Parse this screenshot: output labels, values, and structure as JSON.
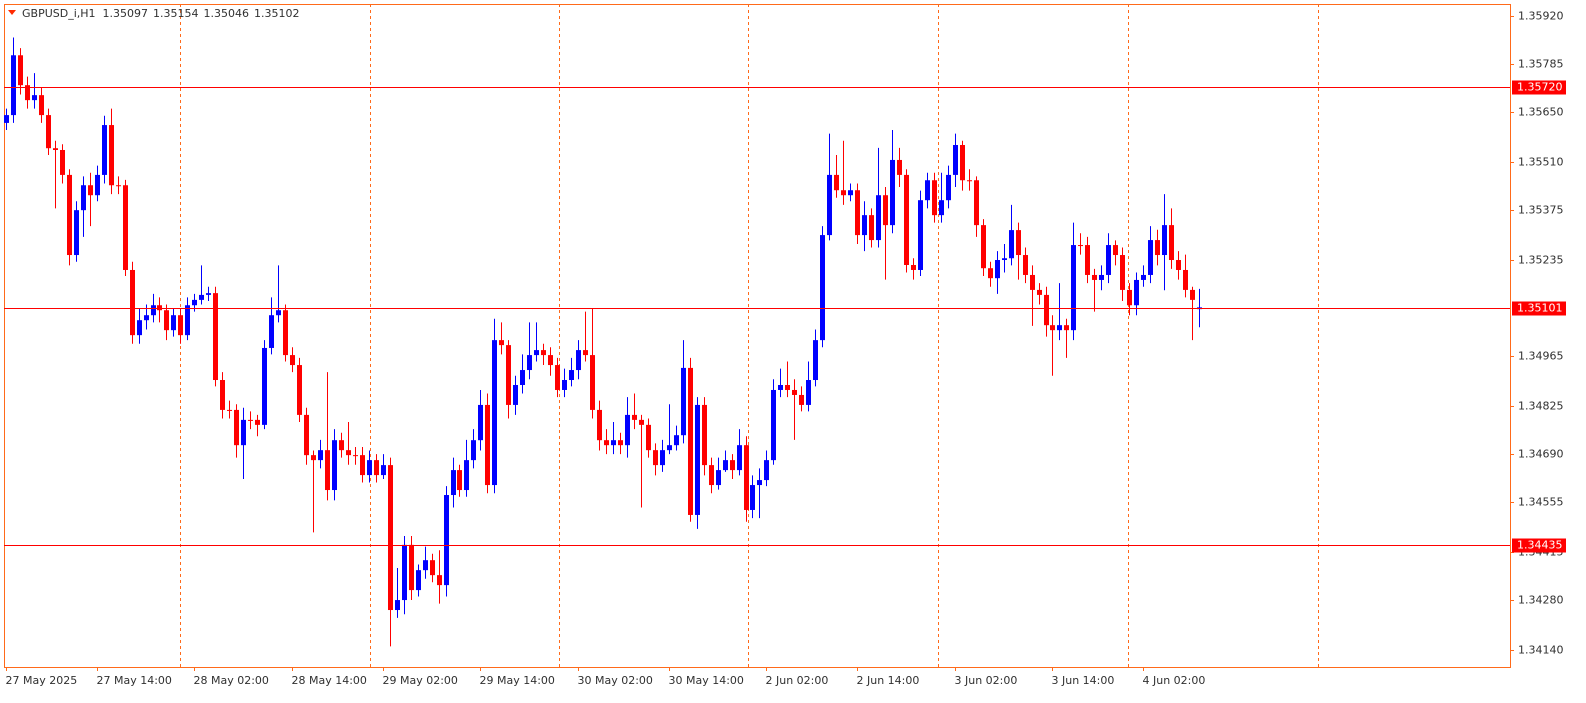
{
  "chart_data": {
    "type": "candlestick",
    "title": "GBPUSD_i,H1",
    "categories": [
      "27 May 2025",
      null,
      null,
      null,
      null,
      null,
      null,
      null,
      null,
      null,
      null,
      null,
      null,
      "27 May 14:00",
      null,
      null,
      null,
      null,
      null,
      null,
      null,
      null,
      null,
      null,
      null,
      null,
      null,
      "28 May 02:00",
      null,
      null,
      null,
      null,
      null,
      null,
      null,
      null,
      null,
      null,
      null,
      null,
      null,
      "28 May 14:00",
      null,
      null,
      null,
      null,
      null,
      null,
      null,
      null,
      null,
      null,
      null,
      null,
      "29 May 02:00",
      null,
      null,
      null,
      null,
      null,
      null,
      null,
      null,
      null,
      null,
      null,
      null,
      null,
      "29 May 14:00",
      null,
      null,
      null,
      null,
      null,
      null,
      null,
      null,
      null,
      null,
      null,
      null,
      null,
      "30 May 02:00",
      null,
      null,
      null,
      null,
      null,
      null,
      null,
      null,
      null,
      null,
      null,
      null,
      "30 May 14:00",
      null,
      null,
      null,
      null,
      null,
      null,
      null,
      null,
      null,
      null,
      null,
      null,
      null,
      "2 Jun 02:00",
      null,
      null,
      null,
      null,
      null,
      null,
      null,
      null,
      null,
      null,
      null,
      null,
      "2 Jun 14:00",
      null,
      null,
      null,
      null,
      null,
      null,
      null,
      null,
      null,
      null,
      null,
      null,
      null,
      "3 Jun 02:00",
      null,
      null,
      null,
      null,
      null,
      null,
      null,
      null,
      null,
      null,
      null,
      null,
      null,
      "3 Jun 14:00",
      null,
      null,
      null,
      null,
      null,
      null,
      null,
      null,
      null,
      null,
      null,
      null,
      "4 Jun 02:00",
      null,
      null,
      null,
      null,
      null,
      null,
      null,
      null
    ],
    "open": [
      1.3562,
      1.35642,
      1.3581,
      1.35726,
      1.35684,
      1.35698,
      1.35642,
      1.35549,
      1.35544,
      1.35474,
      1.35249,
      1.35375,
      1.35445,
      1.35417,
      1.35474,
      1.35614,
      1.35445,
      1.35445,
      1.35207,
      1.35024,
      1.35066,
      1.3508,
      1.35108,
      1.35094,
      1.35038,
      1.3508,
      1.35024,
      1.35108,
      1.35123,
      1.35137,
      1.35142,
      1.34898,
      1.34814,
      1.34814,
      1.34715,
      1.34786,
      1.34786,
      1.34772,
      1.34988,
      1.3508,
      1.35094,
      1.34968,
      1.3494,
      1.348,
      1.34687,
      1.34673,
      1.34701,
      1.34589,
      1.34729,
      1.34701,
      1.34687,
      1.34687,
      1.34631,
      1.34673,
      1.34631,
      1.34659,
      1.34252,
      1.3428,
      1.34435,
      1.34308,
      1.34364,
      1.34392,
      1.3435,
      1.34322,
      1.34575,
      1.34645,
      1.34589,
      1.34673,
      1.34729,
      1.34828,
      1.34603,
      1.3501,
      1.34996,
      1.34828,
      1.34884,
      1.34926,
      1.34968,
      1.34982,
      1.34968,
      1.3494,
      1.3487,
      1.34898,
      1.34926,
      1.34982,
      1.34968,
      1.34814,
      1.34729,
      1.34715,
      1.34729,
      1.34715,
      1.348,
      1.34786,
      1.34772,
      1.34701,
      1.34659,
      1.34701,
      1.34715,
      1.34743,
      1.34932,
      1.34519,
      1.34828,
      1.34659,
      1.34603,
      1.34645,
      1.34673,
      1.34645,
      1.34715,
      1.34533,
      1.34603,
      1.34617,
      1.34673,
      1.3487,
      1.34884,
      1.3487,
      1.34856,
      1.34828,
      1.34898,
      1.3501,
      1.35305,
      1.35474,
      1.35431,
      1.35417,
      1.35431,
      1.35305,
      1.35361,
      1.35291,
      1.35417,
      1.35333,
      1.35516,
      1.35474,
      1.35221,
      1.35207,
      1.35403,
      1.35459,
      1.35361,
      1.35403,
      1.35474,
      1.35558,
      1.35459,
      1.35459,
      1.35333,
      1.35212,
      1.35184,
      1.35235,
      1.3524,
      1.35319,
      1.35249,
      1.35193,
      1.35151,
      1.35137,
      1.35052,
      1.35038,
      1.35052,
      1.35038,
      1.35277,
      1.35277,
      1.35193,
      1.35179,
      1.35193,
      1.35277,
      1.35249,
      1.35151,
      1.35108,
      1.35179,
      1.35193,
      1.35291,
      1.35249,
      1.35333,
      1.35235,
      1.35207,
      1.35151,
      1.35097
    ],
    "high": [
      1.3566,
      1.3586,
      1.3583,
      1.3575,
      1.3576,
      1.3572,
      1.3566,
      1.3557,
      1.3556,
      1.3549,
      1.354,
      1.3547,
      1.3548,
      1.355,
      1.3564,
      1.3566,
      1.3547,
      1.3546,
      1.3523,
      1.351,
      1.3511,
      1.3514,
      1.3513,
      1.3511,
      1.351,
      1.351,
      1.3513,
      1.3514,
      1.3522,
      1.3516,
      1.3516,
      1.3492,
      1.3484,
      1.3483,
      1.3482,
      1.3481,
      1.348,
      1.3501,
      1.3513,
      1.3522,
      1.3511,
      1.3499,
      1.3496,
      1.3482,
      1.347,
      1.3473,
      1.3492,
      1.3476,
      1.3475,
      1.3478,
      1.3471,
      1.3471,
      1.347,
      1.3469,
      1.3469,
      1.3468,
      1.3437,
      1.3446,
      1.3446,
      1.3438,
      1.3443,
      1.3441,
      1.3442,
      1.346,
      1.3468,
      1.3466,
      1.3473,
      1.3476,
      1.3487,
      1.3486,
      1.3507,
      1.3506,
      1.3501,
      1.3491,
      1.3497,
      1.3506,
      1.3506,
      1.35,
      1.3499,
      1.3496,
      1.3493,
      1.3496,
      1.3501,
      1.3509,
      1.351,
      1.3484,
      1.3476,
      1.3478,
      1.3475,
      1.3485,
      1.3486,
      1.348,
      1.3479,
      1.3472,
      1.3473,
      1.3483,
      1.3477,
      1.3501,
      1.3496,
      1.3485,
      1.3485,
      1.3468,
      1.3468,
      1.347,
      1.3469,
      1.3476,
      1.3474,
      1.3463,
      1.3465,
      1.347,
      1.349,
      1.3493,
      1.3495,
      1.349,
      1.3488,
      1.3495,
      1.3504,
      1.3533,
      1.3559,
      1.3553,
      1.3557,
      1.3545,
      1.3545,
      1.354,
      1.3538,
      1.3555,
      1.3544,
      1.356,
      1.3555,
      1.3549,
      1.3524,
      1.3543,
      1.3548,
      1.3548,
      1.3548,
      1.355,
      1.3559,
      1.3557,
      1.3549,
      1.3547,
      1.3535,
      1.3523,
      1.3526,
      1.3528,
      1.3539,
      1.3534,
      1.3527,
      1.3522,
      1.3517,
      1.3516,
      1.3508,
      1.3517,
      1.3507,
      1.3534,
      1.3531,
      1.353,
      1.3521,
      1.3522,
      1.3531,
      1.3529,
      1.3527,
      1.3517,
      1.352,
      1.3522,
      1.3533,
      1.3532,
      1.3542,
      1.3538,
      1.3526,
      1.3525,
      1.3516,
      1.35154
    ],
    "low": [
      1.356,
      1.3562,
      1.357,
      1.3566,
      1.3566,
      1.3562,
      1.3553,
      1.3538,
      1.3545,
      1.3522,
      1.3523,
      1.353,
      1.3533,
      1.354,
      1.3545,
      1.3542,
      1.3542,
      1.3519,
      1.35,
      1.35,
      1.3504,
      1.3506,
      1.3506,
      1.3501,
      1.3502,
      1.35,
      1.3501,
      1.3509,
      1.3511,
      1.3512,
      1.3488,
      1.3479,
      1.3479,
      1.3468,
      1.3462,
      1.3476,
      1.3474,
      1.3476,
      1.3497,
      1.3506,
      1.3495,
      1.3492,
      1.3478,
      1.3466,
      1.3447,
      1.3465,
      1.3456,
      1.3456,
      1.3468,
      1.3466,
      1.3466,
      1.3461,
      1.3461,
      1.3461,
      1.3462,
      1.3415,
      1.3423,
      1.3424,
      1.3428,
      1.3429,
      1.3434,
      1.3433,
      1.3427,
      1.3429,
      1.3454,
      1.3457,
      1.3457,
      1.3465,
      1.347,
      1.3458,
      1.3458,
      1.3497,
      1.3479,
      1.348,
      1.3486,
      1.349,
      1.3495,
      1.3494,
      1.3491,
      1.3485,
      1.3485,
      1.3488,
      1.349,
      1.3495,
      1.3479,
      1.347,
      1.3469,
      1.3469,
      1.3469,
      1.3468,
      1.3476,
      1.3454,
      1.3468,
      1.3463,
      1.3464,
      1.3469,
      1.347,
      1.3472,
      1.345,
      1.3448,
      1.3463,
      1.3458,
      1.3459,
      1.3464,
      1.3462,
      1.3463,
      1.345,
      1.3451,
      1.3451,
      1.346,
      1.3466,
      1.3485,
      1.3485,
      1.3473,
      1.3481,
      1.3481,
      1.3488,
      1.3499,
      1.3529,
      1.3541,
      1.3539,
      1.354,
      1.3528,
      1.3526,
      1.3527,
      1.3527,
      1.3518,
      1.3531,
      1.3544,
      1.352,
      1.3518,
      1.3519,
      1.3538,
      1.3534,
      1.3534,
      1.3538,
      1.3544,
      1.3543,
      1.3543,
      1.353,
      1.3519,
      1.3516,
      1.3514,
      1.352,
      1.3522,
      1.3518,
      1.3517,
      1.3505,
      1.3511,
      1.3502,
      1.3491,
      1.3501,
      1.3496,
      1.3501,
      1.3525,
      1.3517,
      1.3509,
      1.3515,
      1.3517,
      1.3522,
      1.3512,
      1.3508,
      1.3508,
      1.3516,
      1.3517,
      1.3522,
      1.3515,
      1.3521,
      1.3518,
      1.3513,
      1.3501,
      1.35046
    ],
    "close": [
      1.35642,
      1.3581,
      1.35726,
      1.35684,
      1.35698,
      1.35642,
      1.35549,
      1.35544,
      1.35474,
      1.35249,
      1.35375,
      1.35445,
      1.35417,
      1.35474,
      1.35614,
      1.35445,
      1.35445,
      1.35207,
      1.35024,
      1.35066,
      1.3508,
      1.35108,
      1.35094,
      1.35038,
      1.3508,
      1.35024,
      1.35108,
      1.35123,
      1.35137,
      1.35142,
      1.34898,
      1.34814,
      1.34814,
      1.34715,
      1.34786,
      1.34786,
      1.34772,
      1.34988,
      1.3508,
      1.35094,
      1.34968,
      1.3494,
      1.348,
      1.34687,
      1.34673,
      1.34701,
      1.34589,
      1.34729,
      1.34701,
      1.34687,
      1.34687,
      1.34631,
      1.34673,
      1.34631,
      1.34659,
      1.34252,
      1.3428,
      1.34435,
      1.34308,
      1.34364,
      1.34392,
      1.3435,
      1.34322,
      1.34575,
      1.34645,
      1.34589,
      1.34673,
      1.34729,
      1.34828,
      1.34603,
      1.3501,
      1.34996,
      1.34828,
      1.34884,
      1.34926,
      1.34968,
      1.34982,
      1.34968,
      1.3494,
      1.3487,
      1.34898,
      1.34926,
      1.34982,
      1.34968,
      1.34814,
      1.34729,
      1.34715,
      1.34729,
      1.34715,
      1.348,
      1.34786,
      1.34772,
      1.34701,
      1.34659,
      1.34701,
      1.34715,
      1.34743,
      1.34932,
      1.34519,
      1.34828,
      1.34659,
      1.34603,
      1.34645,
      1.34673,
      1.34645,
      1.34715,
      1.34533,
      1.34603,
      1.34617,
      1.34673,
      1.3487,
      1.34884,
      1.3487,
      1.34856,
      1.34828,
      1.34898,
      1.3501,
      1.35305,
      1.35474,
      1.35431,
      1.35417,
      1.35431,
      1.35305,
      1.35361,
      1.35291,
      1.35417,
      1.35333,
      1.35516,
      1.35474,
      1.35221,
      1.35207,
      1.35403,
      1.35459,
      1.35361,
      1.35403,
      1.35474,
      1.35558,
      1.35459,
      1.35459,
      1.35333,
      1.35212,
      1.35184,
      1.35235,
      1.3524,
      1.35319,
      1.35249,
      1.35193,
      1.35151,
      1.35137,
      1.35052,
      1.35038,
      1.35052,
      1.35038,
      1.35277,
      1.35277,
      1.35193,
      1.35179,
      1.35193,
      1.35277,
      1.35249,
      1.35151,
      1.35108,
      1.35179,
      1.35193,
      1.35291,
      1.35249,
      1.35333,
      1.35235,
      1.35207,
      1.35151,
      1.35123,
      1.35102
    ],
    "up_color": "#0000ff",
    "down_color": "#ff0000",
    "ylim": [
      1.34092,
      1.35954
    ],
    "yticks": [
      {
        "value": 1.3592,
        "label": "1.35920"
      },
      1.35785,
      {
        "value": 1.3565,
        "label": "1.35650"
      },
      {
        "value": 1.3551,
        "label": "1.35510"
      },
      1.35375,
      1.35235,
      1.34965,
      1.34825,
      {
        "value": 1.3469,
        "label": "1.34690"
      },
      1.34555,
      1.34415,
      {
        "value": 1.3428,
        "label": "1.34280"
      },
      {
        "value": 1.3414,
        "label": "1.34140"
      }
    ],
    "hlines": [
      {
        "value": 1.3572,
        "label": "1.35720"
      },
      1.35101,
      1.34435
    ],
    "hline_color": "#ff0000"
  }
}
